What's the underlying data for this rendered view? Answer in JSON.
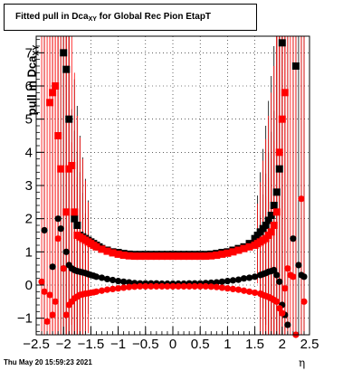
{
  "title": {
    "main": "Fitted pull in Dca",
    "sub": "XY",
    "rest": " for Global Rec Pion EtapT"
  },
  "ylabel": {
    "main": "pull in Dca",
    "sub": "XY"
  },
  "xlabel": "η",
  "footer": "Thu May 20 15:59:23 2021",
  "chart_data": {
    "type": "scatter",
    "xlim": [
      -2.5,
      2.5
    ],
    "ylim": [
      -1.5,
      7.5
    ],
    "x_ticks": [
      -2.5,
      -2,
      -1.5,
      -1,
      -0.5,
      0,
      0.5,
      1,
      1.5,
      2,
      2.5
    ],
    "x_tick_labels": [
      "−2.5",
      "−2",
      "−1.5",
      "−1",
      "−0.5",
      "0",
      "0.5",
      "1",
      "1.5",
      "2",
      "2.5"
    ],
    "y_ticks": [
      -1,
      0,
      1,
      2,
      3,
      4,
      5,
      6,
      7
    ],
    "y_tick_labels": [
      "−1",
      "0",
      "1",
      "2",
      "3",
      "4",
      "5",
      "6",
      "7"
    ],
    "grid": true,
    "colors": {
      "black": "#000000",
      "red": "#ff0000"
    },
    "series": [
      {
        "color": "#000000",
        "marker": "square",
        "x": [
          -2.0,
          -1.95,
          -1.9,
          -1.8,
          -1.75,
          -1.7,
          -1.65,
          -1.6,
          -1.55,
          -1.5,
          -1.45,
          -1.4,
          -1.35,
          -1.3,
          -1.2,
          -1.1,
          -1.0,
          -0.9,
          -0.8,
          -0.7,
          -0.6,
          -0.5,
          -0.4,
          -0.3,
          -0.2,
          -0.1,
          0.0,
          0.1,
          0.2,
          0.3,
          0.4,
          0.5,
          0.6,
          0.7,
          0.8,
          0.9,
          1.0,
          1.1,
          1.2,
          1.3,
          1.4,
          1.5,
          1.55,
          1.6,
          1.65,
          1.7,
          1.75,
          1.8,
          1.85,
          1.9,
          1.95,
          2.0,
          2.25
        ],
        "y": [
          7.0,
          6.5,
          5.0,
          2.0,
          1.8,
          1.5,
          1.45,
          1.4,
          1.35,
          1.3,
          1.25,
          1.2,
          1.15,
          1.1,
          1.05,
          1.0,
          0.98,
          0.95,
          0.93,
          0.92,
          0.92,
          0.92,
          0.92,
          0.92,
          0.92,
          0.92,
          0.92,
          0.92,
          0.92,
          0.92,
          0.92,
          0.92,
          0.92,
          0.93,
          0.95,
          0.98,
          1.0,
          1.05,
          1.1,
          1.15,
          1.25,
          1.4,
          1.5,
          1.6,
          1.7,
          1.8,
          1.95,
          2.1,
          2.4,
          2.8,
          3.5,
          7.3,
          6.6
        ]
      },
      {
        "color": "#000000",
        "marker": "circle",
        "x": [
          -2.35,
          -2.2,
          -2.1,
          -2.05,
          -2.0,
          -1.95,
          -1.9,
          -1.85,
          -1.8,
          -1.75,
          -1.7,
          -1.65,
          -1.6,
          -1.55,
          -1.5,
          -1.45,
          -1.4,
          -1.3,
          -1.2,
          -1.1,
          -1.0,
          -0.9,
          -0.8,
          -0.7,
          -0.6,
          -0.5,
          -0.4,
          -0.3,
          -0.2,
          -0.1,
          0.0,
          0.1,
          0.2,
          0.3,
          0.4,
          0.5,
          0.6,
          0.7,
          0.8,
          0.9,
          1.0,
          1.1,
          1.2,
          1.3,
          1.4,
          1.5,
          1.6,
          1.65,
          1.7,
          1.75,
          1.8,
          1.85,
          1.9,
          1.95,
          2.0,
          2.05,
          2.1,
          2.2,
          2.3,
          2.35,
          2.4
        ],
        "y": [
          1.65,
          0.55,
          2.0,
          1.7,
          0.5,
          1.0,
          0.6,
          0.5,
          0.45,
          0.42,
          0.4,
          0.38,
          0.36,
          0.33,
          0.3,
          0.28,
          0.25,
          0.22,
          0.18,
          0.15,
          0.12,
          0.1,
          0.08,
          0.06,
          0.05,
          0.05,
          0.05,
          0.05,
          0.04,
          0.04,
          0.04,
          0.04,
          0.04,
          0.05,
          0.05,
          0.05,
          0.06,
          0.07,
          0.08,
          0.1,
          0.12,
          0.14,
          0.16,
          0.2,
          0.22,
          0.25,
          0.3,
          0.33,
          0.36,
          0.4,
          0.42,
          0.45,
          0.3,
          0.1,
          -0.6,
          -0.9,
          -1.2,
          1.4,
          0.6,
          0.3,
          0.25
        ]
      },
      {
        "color": "#ff0000",
        "marker": "square",
        "x": [
          -2.25,
          -2.2,
          -2.15,
          -2.1,
          -2.05,
          -1.95,
          -1.9,
          -1.85,
          -1.8,
          -1.75,
          -1.7,
          -1.65,
          -1.6,
          -1.55,
          -1.5,
          -1.45,
          -1.4,
          -1.3,
          -1.2,
          -1.1,
          -1.0,
          -0.9,
          -0.8,
          -0.7,
          -0.6,
          -0.5,
          -0.4,
          -0.3,
          -0.2,
          -0.1,
          0.0,
          0.1,
          0.2,
          0.3,
          0.4,
          0.5,
          0.6,
          0.7,
          0.8,
          0.9,
          1.0,
          1.1,
          1.2,
          1.3,
          1.4,
          1.5,
          1.55,
          1.6,
          1.65,
          1.7,
          1.75,
          1.8,
          1.85,
          1.9,
          1.95,
          2.0,
          2.05
        ],
        "y": [
          5.5,
          5.8,
          6.0,
          4.5,
          3.5,
          2.2,
          3.5,
          3.6,
          2.2,
          1.5,
          1.45,
          1.4,
          1.35,
          1.3,
          1.25,
          1.2,
          1.15,
          1.08,
          1.02,
          0.97,
          0.93,
          0.9,
          0.88,
          0.87,
          0.87,
          0.87,
          0.87,
          0.87,
          0.87,
          0.87,
          0.87,
          0.87,
          0.87,
          0.87,
          0.87,
          0.87,
          0.87,
          0.88,
          0.9,
          0.93,
          0.96,
          1.0,
          1.05,
          1.1,
          1.15,
          1.2,
          1.25,
          1.3,
          1.35,
          1.4,
          1.5,
          1.6,
          1.8,
          2.2,
          4.0,
          5.0,
          5.8
        ]
      },
      {
        "color": "#ff0000",
        "marker": "circle",
        "x": [
          -2.4,
          -2.35,
          -2.3,
          -2.25,
          -2.2,
          -2.15,
          -2.1,
          -2.0,
          -1.95,
          -1.9,
          -1.85,
          -1.8,
          -1.75,
          -1.7,
          -1.65,
          -1.6,
          -1.55,
          -1.5,
          -1.45,
          -1.4,
          -1.3,
          -1.2,
          -1.1,
          -1.0,
          -0.9,
          -0.8,
          -0.7,
          -0.6,
          -0.5,
          -0.4,
          -0.3,
          -0.2,
          -0.1,
          0.0,
          0.1,
          0.2,
          0.3,
          0.4,
          0.5,
          0.6,
          0.7,
          0.8,
          0.9,
          1.0,
          1.1,
          1.2,
          1.3,
          1.4,
          1.5,
          1.6,
          1.65,
          1.7,
          1.75,
          1.8,
          1.85,
          1.9,
          1.95,
          2.0,
          2.05,
          2.1,
          2.15,
          2.2,
          2.25,
          2.35,
          2.4
        ],
        "y": [
          0.1,
          -0.2,
          -1.1,
          -0.3,
          -0.9,
          -0.5,
          1.4,
          0.5,
          -0.9,
          -0.6,
          -0.5,
          -0.4,
          -0.35,
          -0.3,
          -0.28,
          -0.26,
          -0.25,
          -0.23,
          -0.22,
          -0.2,
          -0.17,
          -0.14,
          -0.12,
          -0.1,
          -0.08,
          -0.06,
          -0.05,
          -0.04,
          -0.04,
          -0.04,
          -0.04,
          -0.04,
          -0.04,
          -0.04,
          -0.04,
          -0.04,
          -0.04,
          -0.04,
          -0.04,
          -0.04,
          -0.05,
          -0.06,
          -0.08,
          -0.1,
          -0.12,
          -0.14,
          -0.17,
          -0.2,
          -0.23,
          -0.26,
          -0.3,
          -0.33,
          -0.36,
          -0.4,
          -0.45,
          -0.5,
          -0.7,
          -0.85,
          -0.1,
          0.5,
          0.3,
          0.25,
          -1.5,
          2.6,
          -0.5
        ]
      }
    ]
  }
}
